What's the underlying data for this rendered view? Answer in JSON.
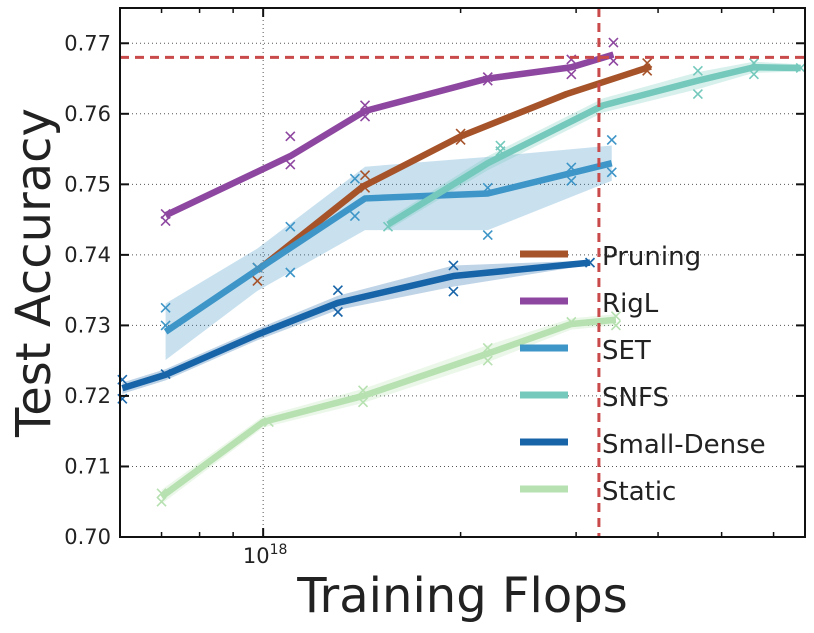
{
  "chart_data": {
    "type": "line",
    "title": "",
    "xlabel": "Training Flops",
    "ylabel": "Test Accuracy",
    "xscale": "log",
    "x_tick_label": "10^18",
    "x_tick_label_base": "10",
    "x_tick_label_exp": "18",
    "x_major_tick": 1e+18,
    "x_minor_ticks": [
      7e+17,
      8e+17,
      9e+17,
      2e+18,
      3e+18,
      4e+18,
      5e+18,
      6e+18
    ],
    "xlim": [
      6.05e+17,
      6.7e+18
    ],
    "ylim": [
      0.7,
      0.775
    ],
    "y_ticks": [
      0.7,
      0.71,
      0.72,
      0.73,
      0.74,
      0.75,
      0.76,
      0.77
    ],
    "y_tick_labels": [
      "0.70",
      "0.71",
      "0.72",
      "0.73",
      "0.74",
      "0.75",
      "0.76",
      "0.77"
    ],
    "grid": true,
    "reference_lines": {
      "horizontal_y": 0.768,
      "vertical_x": 3.25e+18,
      "color": "#c94a4a"
    },
    "legend_position": "center-right",
    "series": [
      {
        "name": "Pruning",
        "color": "#a6532a",
        "band": [],
        "x": [
          9.8e+17,
          1.42e+18,
          2e+18,
          2.9e+18,
          3.9e+18
        ],
        "y": [
          0.7378,
          0.7497,
          0.7568,
          0.7628,
          0.7667
        ],
        "trials_x": [
          9.8e+17,
          9.8e+17,
          1.43e+18,
          1.43e+18,
          2e+18,
          2e+18,
          3.85e+18,
          3.85e+18
        ],
        "trials_y": [
          0.7363,
          0.7382,
          0.7513,
          0.7495,
          0.7572,
          0.7563,
          0.7661,
          0.7672
        ]
      },
      {
        "name": "RigL",
        "color": "#8e47a0",
        "band": [],
        "x": [
          7.1e+17,
          1.1e+18,
          1.43e+18,
          2.2e+18,
          2.95e+18,
          3.42e+18
        ],
        "y": [
          0.7456,
          0.754,
          0.7604,
          0.765,
          0.7666,
          0.7684
        ],
        "trials_x": [
          7.1e+17,
          7.1e+17,
          1.1e+18,
          1.1e+18,
          1.43e+18,
          1.43e+18,
          2.2e+18,
          2.2e+18,
          2.95e+18,
          2.95e+18,
          3.42e+18,
          3.42e+18
        ],
        "trials_y": [
          0.7448,
          0.7458,
          0.7568,
          0.7528,
          0.7612,
          0.7596,
          0.7652,
          0.7647,
          0.7677,
          0.7656,
          0.7701,
          0.7675
        ]
      },
      {
        "name": "SET",
        "color": "#3e95c7",
        "x": [
          7.1e+17,
          9.8e+17,
          1.43e+18,
          2.2e+18,
          3.4e+18
        ],
        "y": [
          0.7291,
          0.7379,
          0.748,
          0.7487,
          0.753
        ],
        "band": [
          0.004,
          0.003,
          0.0045,
          0.0052,
          0.0025
        ],
        "trials_x": [
          7.1e+17,
          7.1e+17,
          9.8e+17,
          1.1e+18,
          1.1e+18,
          1.38e+18,
          1.38e+18,
          2.2e+18,
          2.2e+18,
          2.95e+18,
          2.95e+18,
          3.4e+18,
          3.4e+18
        ],
        "trials_y": [
          0.7325,
          0.73,
          0.7382,
          0.744,
          0.7375,
          0.7508,
          0.7455,
          0.7495,
          0.7428,
          0.7524,
          0.7505,
          0.7563,
          0.7517
        ]
      },
      {
        "name": "SNFS",
        "color": "#74c9bc",
        "x": [
          1.55e+18,
          2.2e+18,
          3.3e+18,
          4.6e+18,
          5.6e+18,
          6.6e+18
        ],
        "y": [
          0.7443,
          0.753,
          0.7612,
          0.7647,
          0.7666,
          0.7665
        ],
        "band": [
          0.0008,
          0.001,
          0.001,
          0.0012,
          0.0008,
          0.0005
        ],
        "trials_x": [
          1.55e+18,
          2.3e+18,
          2.3e+18,
          4.6e+18,
          4.6e+18,
          5.6e+18,
          5.6e+18,
          6.6e+18
        ],
        "trials_y": [
          0.744,
          0.7547,
          0.7555,
          0.7628,
          0.7661,
          0.7656,
          0.7672,
          0.7665
        ]
      },
      {
        "name": "Small-Dense",
        "color": "#1864a8",
        "x": [
          6.1e+17,
          7.1e+17,
          9.8e+17,
          1.3e+18,
          1.95e+18,
          3.15e+18
        ],
        "y": [
          0.7211,
          0.723,
          0.7287,
          0.7332,
          0.737,
          0.7389
        ],
        "band": [
          0.0008,
          0.0008,
          0.0008,
          0.001,
          0.0015,
          0.0003
        ],
        "trials_x": [
          6.1e+17,
          6.1e+17,
          7.1e+17,
          1.3e+18,
          1.3e+18,
          1.95e+18,
          1.95e+18,
          3.15e+18
        ],
        "trials_y": [
          0.7223,
          0.7196,
          0.7231,
          0.735,
          0.7319,
          0.7385,
          0.7348,
          0.7389
        ]
      },
      {
        "name": "Static",
        "color": "#b7e1b1",
        "x": [
          7e+17,
          1e+18,
          1.42e+18,
          2.2e+18,
          2.95e+18,
          3.45e+18
        ],
        "y": [
          0.7057,
          0.7163,
          0.72,
          0.726,
          0.7302,
          0.7308
        ],
        "band": [
          0.001,
          0.0008,
          0.001,
          0.0012,
          0.0008,
          0.0008
        ],
        "trials_x": [
          7e+17,
          7e+17,
          1.02e+18,
          1.42e+18,
          1.42e+18,
          2.2e+18,
          2.2e+18,
          2.95e+18,
          3.45e+18,
          3.45e+18
        ],
        "trials_y": [
          0.7062,
          0.705,
          0.7163,
          0.7208,
          0.7191,
          0.7268,
          0.725,
          0.7305,
          0.7313,
          0.73
        ]
      }
    ]
  }
}
